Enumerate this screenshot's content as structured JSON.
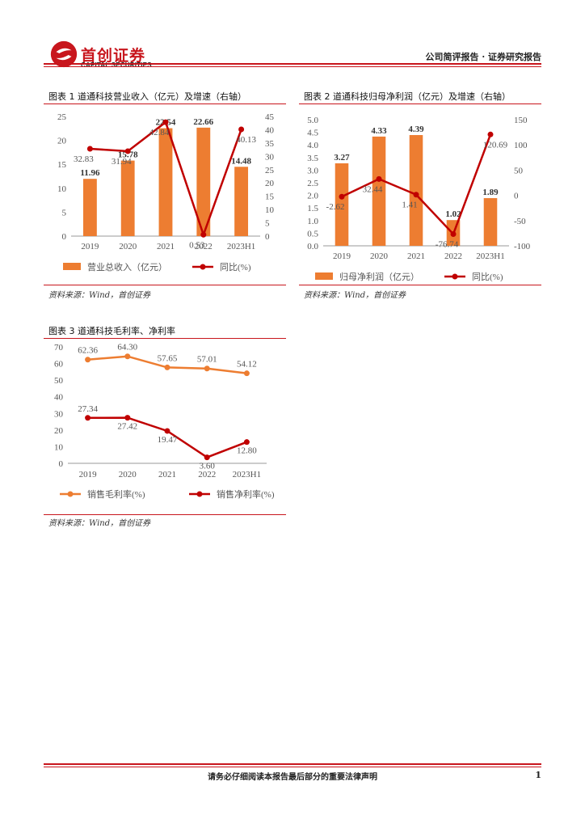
{
  "header": {
    "logo_text": "首创证券",
    "logo_subtext": "CAPITAL SECURITIES",
    "report_type": "公司简评报告 · 证券研究报告"
  },
  "footer": {
    "disclaimer": "请务必仔细阅读本报告最后部分的重要法律声明",
    "page_number": "1"
  },
  "colors": {
    "brand_red": "#c8161d",
    "bar_orange": "#ed7d31",
    "line_red": "#c00000"
  },
  "figures": [
    {
      "title": "图表 1 道通科技营业收入（亿元）及增速（右轴）",
      "source": "资料来源：Wind，首创证券"
    },
    {
      "title": "图表 2 道通科技归母净利润（亿元）及增速（右轴）",
      "source": "资料来源：Wind，首创证券"
    },
    {
      "title": "图表 3 道通科技毛利率、净利率",
      "source": "资料来源：Wind，首创证券"
    }
  ],
  "chart_data": [
    {
      "type": "bar",
      "categories": [
        "2019",
        "2020",
        "2021",
        "2022",
        "2023H1"
      ],
      "series": [
        {
          "name": "营业总收入（亿元）",
          "type": "bar",
          "axis": "left",
          "values": [
            11.96,
            15.78,
            22.54,
            22.66,
            14.48
          ]
        },
        {
          "name": "同比(%)",
          "type": "line",
          "axis": "right",
          "values": [
            32.83,
            31.94,
            42.84,
            0.53,
            40.13
          ]
        }
      ],
      "ylim": [
        0,
        25
      ],
      "yticks": [
        0,
        5,
        10,
        15,
        20,
        25
      ],
      "y2lim": [
        0,
        45
      ],
      "y2ticks": [
        0,
        5,
        10,
        15,
        20,
        25,
        30,
        35,
        40,
        45
      ],
      "legend": "bottom"
    },
    {
      "type": "bar",
      "categories": [
        "2019",
        "2020",
        "2021",
        "2022",
        "2023H1"
      ],
      "series": [
        {
          "name": "归母净利润（亿元）",
          "type": "bar",
          "axis": "left",
          "values": [
            3.27,
            4.33,
            4.39,
            1.02,
            1.89
          ]
        },
        {
          "name": "同比(%)",
          "type": "line",
          "axis": "right",
          "values": [
            -2.62,
            32.44,
            1.41,
            -76.74,
            120.69
          ]
        }
      ],
      "ylim": [
        0,
        5
      ],
      "yticks": [
        "0.0",
        "0.5",
        "1.0",
        "1.5",
        "2.0",
        "2.5",
        "3.0",
        "3.5",
        "4.0",
        "4.5",
        "5.0"
      ],
      "y2lim": [
        -100,
        150
      ],
      "y2ticks": [
        -100,
        -50,
        0,
        50,
        100,
        150
      ],
      "legend": "bottom"
    },
    {
      "type": "line",
      "categories": [
        "2019",
        "2020",
        "2021",
        "2022",
        "2023H1"
      ],
      "series": [
        {
          "name": "销售毛利率(%)",
          "values": [
            62.36,
            64.3,
            57.65,
            57.01,
            54.12
          ]
        },
        {
          "name": "销售净利率(%)",
          "values": [
            27.34,
            27.42,
            19.47,
            3.6,
            12.8
          ]
        }
      ],
      "ylim": [
        0,
        70
      ],
      "yticks": [
        0,
        10,
        20,
        30,
        40,
        50,
        60,
        70
      ],
      "legend": "bottom"
    }
  ]
}
